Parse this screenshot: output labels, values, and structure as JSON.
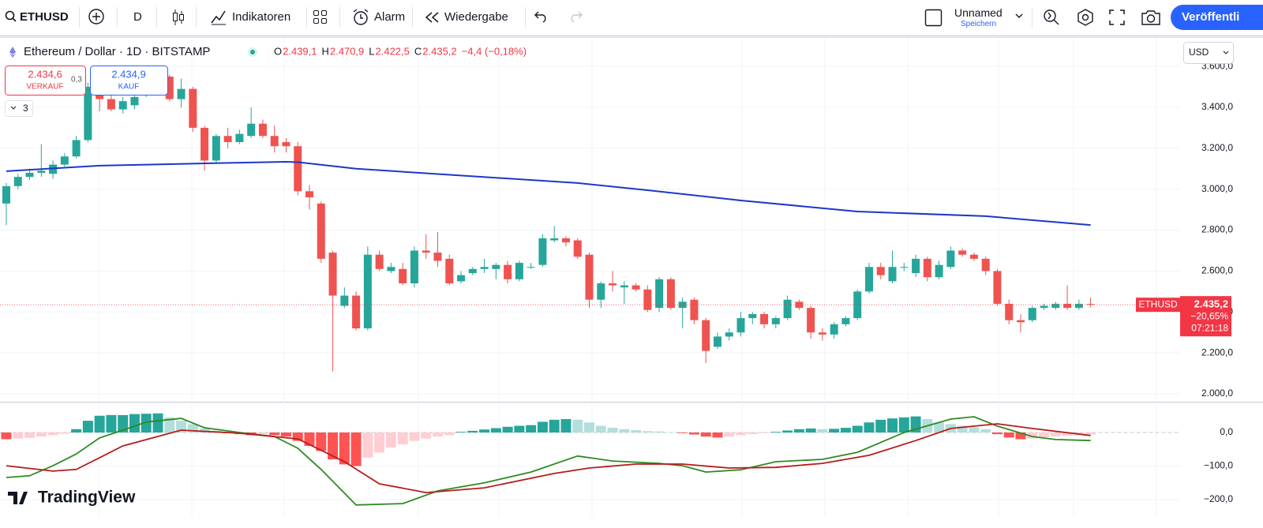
{
  "toolbar": {
    "symbol": "ETHUSD",
    "interval": "D",
    "indicators": "Indikatoren",
    "alert": "Alarm",
    "replay": "Wiedergabe",
    "layout_name": "Unnamed",
    "save": "Speichern",
    "publish": "Veröffentli"
  },
  "legend": {
    "title": "Ethereum / Dollar · 1D · BITSTAMP",
    "ohlc": [
      {
        "label": "O",
        "value": "2.439,1"
      },
      {
        "label": "H",
        "value": "2.470,9"
      },
      {
        "label": "L",
        "value": "2.422,5"
      },
      {
        "label": "C",
        "value": "2.435,2"
      }
    ],
    "change": "−4,4 (−0,18%)"
  },
  "trade": {
    "sell_price": "2.434,6",
    "sell": "VERKAUF",
    "spread": "0,3",
    "buy_price": "2.434,9",
    "buy": "KAUF"
  },
  "indicators_collapsed": "3",
  "branding": "TradingView",
  "chart_data": [
    {
      "type": "candlestick",
      "symbol": "ETHUSD",
      "currency": "USD",
      "open": [
        2930,
        3015,
        3060,
        3080,
        3075,
        3120,
        3160,
        3240,
        3500,
        3440,
        3390,
        3410,
        3460,
        3520,
        3550,
        3440,
        3490,
        3300,
        3140,
        3260,
        3230,
        3260,
        3320,
        3260,
        3230,
        3210,
        2990,
        2930,
        2690,
        2430,
        2480,
        2320,
        2680,
        2600,
        2610,
        2540,
        2700,
        2690,
        2660,
        2550,
        2590,
        2610,
        2610,
        2630,
        2560,
        2620,
        2630,
        2750,
        2760,
        2750,
        2680,
        2460,
        2540,
        2520,
        2530,
        2510,
        2420,
        2560,
        2420,
        2460,
        2360,
        2230,
        2280,
        2300,
        2370,
        2390,
        2340,
        2370,
        2450,
        2420,
        2300,
        2290,
        2340,
        2370,
        2500,
        2620,
        2550,
        2620,
        2590,
        2660,
        2570,
        2620,
        2700,
        2680,
        2660,
        2600,
        2440,
        2360,
        2360,
        2420,
        2420,
        2440,
        2420,
        2439.1
      ],
      "high": [
        3030,
        3075,
        3100,
        3220,
        3140,
        3175,
        3260,
        3520,
        3570,
        3470,
        3450,
        3480,
        3540,
        3560,
        3560,
        3540,
        3500,
        3310,
        3270,
        3300,
        3290,
        3400,
        3340,
        3310,
        3250,
        3230,
        3020,
        2940,
        2700,
        2520,
        2500,
        2720,
        2700,
        2640,
        2640,
        2720,
        2780,
        2790,
        2680,
        2600,
        2620,
        2660,
        2640,
        2650,
        2650,
        2640,
        2780,
        2820,
        2770,
        2760,
        2690,
        2550,
        2600,
        2550,
        2540,
        2530,
        2570,
        2570,
        2470,
        2470,
        2370,
        2300,
        2320,
        2400,
        2400,
        2400,
        2380,
        2480,
        2460,
        2430,
        2320,
        2350,
        2380,
        2510,
        2640,
        2640,
        2700,
        2640,
        2680,
        2670,
        2650,
        2720,
        2710,
        2690,
        2670,
        2610,
        2460,
        2390,
        2430,
        2440,
        2450,
        2530,
        2460,
        2470.9
      ],
      "low": [
        2825,
        3000,
        3045,
        3060,
        3050,
        3110,
        3150,
        3230,
        3380,
        3380,
        3370,
        3390,
        3450,
        3500,
        3430,
        3400,
        3280,
        3090,
        3130,
        3200,
        3220,
        3250,
        3250,
        3180,
        3180,
        2970,
        2900,
        2640,
        2110,
        2420,
        2310,
        2310,
        2600,
        2590,
        2530,
        2520,
        2660,
        2620,
        2530,
        2540,
        2580,
        2590,
        2560,
        2540,
        2550,
        2610,
        2620,
        2740,
        2720,
        2660,
        2420,
        2420,
        2500,
        2440,
        2500,
        2400,
        2400,
        2410,
        2320,
        2340,
        2150,
        2220,
        2260,
        2280,
        2340,
        2320,
        2320,
        2360,
        2410,
        2270,
        2260,
        2270,
        2330,
        2360,
        2490,
        2560,
        2540,
        2600,
        2570,
        2550,
        2560,
        2610,
        2670,
        2650,
        2580,
        2430,
        2340,
        2300,
        2350,
        2410,
        2410,
        2410,
        2410,
        2422.5
      ],
      "close": [
        3015,
        3060,
        3080,
        3090,
        3120,
        3160,
        3240,
        3500,
        3440,
        3390,
        3430,
        3450,
        3520,
        3540,
        3440,
        3490,
        3300,
        3140,
        3260,
        3230,
        3270,
        3320,
        3260,
        3210,
        3210,
        2990,
        2960,
        2660,
        2480,
        2480,
        2320,
        2680,
        2610,
        2620,
        2540,
        2700,
        2690,
        2650,
        2540,
        2580,
        2610,
        2620,
        2630,
        2560,
        2640,
        2620,
        2760,
        2760,
        2740,
        2670,
        2460,
        2540,
        2530,
        2530,
        2510,
        2410,
        2560,
        2420,
        2450,
        2360,
        2210,
        2280,
        2300,
        2370,
        2390,
        2340,
        2370,
        2460,
        2420,
        2300,
        2290,
        2340,
        2370,
        2500,
        2620,
        2580,
        2620,
        2620,
        2660,
        2570,
        2630,
        2700,
        2680,
        2660,
        2600,
        2440,
        2360,
        2350,
        2420,
        2430,
        2440,
        2420,
        2440,
        2435.2
      ],
      "up_color": "#26a69a",
      "down_color": "#ef5350",
      "overlays": [
        {
          "x": [
            0,
            8,
            17,
            24,
            25,
            30,
            49,
            55,
            63,
            73,
            84,
            93
          ],
          "values": [
            3088,
            3115,
            3126,
            3134,
            3132,
            3100,
            3030,
            2995,
            2945,
            2891,
            2868,
            2825
          ],
          "color": "#1c37c9"
        }
      ],
      "ylim": [
        1960,
        3740
      ],
      "yticks": [
        {
          "value": 2000,
          "label": "2.000,0"
        },
        {
          "value": 2200,
          "label": "2.200,0"
        },
        {
          "value": 2400,
          "label": "2.400,0"
        },
        {
          "value": 2600,
          "label": "2.600,0"
        },
        {
          "value": 2800,
          "label": "2.800,0"
        },
        {
          "value": 3000,
          "label": "3.000,0"
        },
        {
          "value": 3200,
          "label": "3.200,0"
        },
        {
          "value": 3400,
          "label": "3.400,0"
        },
        {
          "value": 3600,
          "label": "3.600,0"
        }
      ],
      "grid": true,
      "last_price": {
        "value": 2435.2,
        "label": "2.435,2",
        "change": "−20,65%",
        "countdown": "07:21:18",
        "color": "#f23645"
      }
    },
    {
      "type": "macd",
      "histogram": [
        -20,
        -18,
        -16,
        -12,
        -8,
        -4,
        10,
        35,
        50,
        52,
        52,
        55,
        56,
        57,
        45,
        35,
        25,
        12,
        5,
        -2,
        -5,
        -8,
        -5,
        -8,
        -12,
        -25,
        -40,
        -55,
        -80,
        -95,
        -100,
        -75,
        -60,
        -45,
        -35,
        -25,
        -18,
        -12,
        -8,
        2,
        5,
        9,
        13,
        17,
        20,
        22,
        32,
        38,
        40,
        38,
        30,
        20,
        14,
        10,
        7,
        4,
        3,
        1,
        -2,
        -6,
        -12,
        -15,
        -12,
        -8,
        -5,
        -2,
        2,
        6,
        10,
        12,
        10,
        11,
        14,
        20,
        30,
        38,
        42,
        45,
        48,
        40,
        30,
        25,
        20,
        15,
        10,
        -5,
        -15,
        -20,
        -18,
        -14,
        -12,
        -10,
        -8,
        -6
      ],
      "histogram_colors": {
        "pos_rising": "#26a69a",
        "pos_falling": "#b2dfdb",
        "neg_falling": "#ff5252",
        "neg_rising": "#ffcdd2"
      },
      "series": [
        {
          "x": [
            0,
            2,
            4,
            6,
            8,
            10,
            12,
            15,
            17,
            20,
            23,
            25,
            27,
            30,
            34,
            37,
            41,
            45,
            49,
            52,
            56,
            58,
            60,
            63,
            66,
            70,
            73,
            77,
            81,
            83,
            85,
            88,
            90,
            93
          ],
          "values": [
            -134,
            -129,
            -99,
            -64,
            -16,
            7,
            31,
            42,
            14,
            0,
            -12,
            -47,
            -110,
            -216,
            -212,
            -174,
            -150,
            -118,
            -70,
            -85,
            -92,
            -99,
            -118,
            -111,
            -87,
            -80,
            -59,
            0,
            40,
            47,
            19,
            -12,
            -21,
            -24
          ],
          "color": "#2e8b22"
        },
        {
          "x": [
            0,
            4,
            6,
            10,
            15,
            20,
            25,
            29,
            32,
            36,
            41,
            47,
            50,
            54,
            58,
            62,
            66,
            70,
            74,
            78,
            81,
            85,
            88,
            93
          ],
          "values": [
            -99,
            -115,
            -110,
            -40,
            7,
            -2,
            -19,
            -87,
            -153,
            -179,
            -165,
            -122,
            -106,
            -94,
            -94,
            -106,
            -104,
            -92,
            -68,
            -24,
            12,
            26,
            12,
            -9
          ],
          "color": "#b71c1c"
        }
      ],
      "ylim": [
        -250,
        90
      ],
      "yticks": [
        {
          "value": 0,
          "label": "0,0"
        },
        {
          "value": -100,
          "label": "−100,0"
        },
        {
          "value": -200,
          "label": "−200,0"
        }
      ],
      "grid": true
    }
  ]
}
